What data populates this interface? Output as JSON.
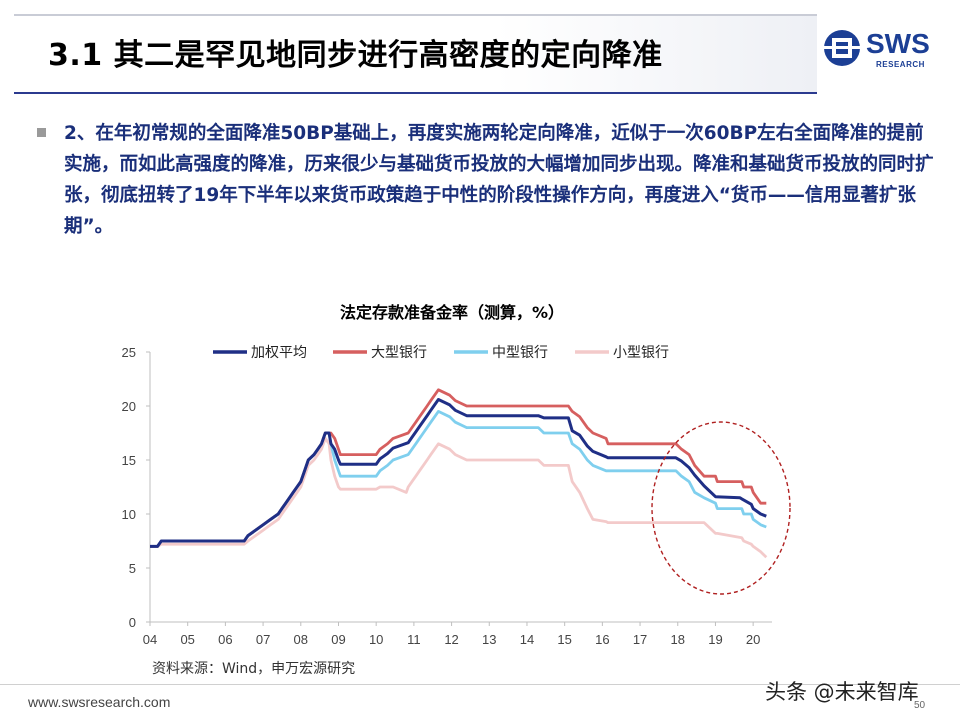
{
  "slide": {
    "title": "3.1 其二是罕见地同步进行高密度的定向降准",
    "logo_text": "SWS",
    "logo_sub": "RESEARCH",
    "paragraph": "2、在年初常规的全面降准50BP基础上，再度实施两轮定向降准，近似于一次60BP左右全面降准的提前实施，而如此高强度的降准，历来很少与基础货币投放的大幅增加同步出现。降准和基础货币投放的同时扩张，彻底扭转了19年下半年以来货币政策趋于中性的阶段性操作方向，再度进入“货币——信用显著扩张期”。",
    "source": "资料来源：Wind，申万宏源研究",
    "footer_url": "www.swsresearch.com",
    "watermark": "头条 @未来智库",
    "page_number": "50"
  },
  "colors": {
    "weighted": "#1f2f86",
    "large": "#d65f5f",
    "medium": "#7fcfee",
    "small": "#f3caca",
    "ellipse": "#b02020"
  },
  "chart_data": {
    "type": "line",
    "title": "法定存款准备金率（测算，%）",
    "xlabel": "",
    "ylabel": "",
    "ylim": [
      0,
      25
    ],
    "yticks": [
      0,
      5,
      10,
      15,
      20,
      25
    ],
    "xlim": [
      2004,
      2020.5
    ],
    "xticks": [
      2004,
      2005,
      2006,
      2007,
      2008,
      2009,
      2010,
      2011,
      2012,
      2013,
      2014,
      2015,
      2016,
      2017,
      2018,
      2019,
      2020
    ],
    "xtick_labels": [
      "04",
      "05",
      "06",
      "07",
      "08",
      "09",
      "10",
      "11",
      "12",
      "13",
      "14",
      "15",
      "16",
      "17",
      "18",
      "19",
      "20"
    ],
    "grid": false,
    "legend": "top",
    "series": [
      {
        "name": "加权平均",
        "key": "weighted",
        "points": [
          [
            2004.0,
            7
          ],
          [
            2004.2,
            7
          ],
          [
            2004.3,
            7.5
          ],
          [
            2006.5,
            7.5
          ],
          [
            2006.6,
            8
          ],
          [
            2006.8,
            8.5
          ],
          [
            2007.0,
            9
          ],
          [
            2007.2,
            9.5
          ],
          [
            2007.4,
            10
          ],
          [
            2007.5,
            10.5
          ],
          [
            2007.6,
            11
          ],
          [
            2007.7,
            11.5
          ],
          [
            2007.8,
            12
          ],
          [
            2007.9,
            12.5
          ],
          [
            2008.0,
            13
          ],
          [
            2008.1,
            14
          ],
          [
            2008.2,
            15
          ],
          [
            2008.35,
            15.5
          ],
          [
            2008.45,
            16
          ],
          [
            2008.55,
            16.5
          ],
          [
            2008.65,
            17.5
          ],
          [
            2008.75,
            17.5
          ],
          [
            2008.8,
            16.5
          ],
          [
            2008.9,
            16
          ],
          [
            2009.0,
            15
          ],
          [
            2009.05,
            14.6
          ],
          [
            2010.0,
            14.6
          ],
          [
            2010.1,
            15.1
          ],
          [
            2010.3,
            15.6
          ],
          [
            2010.45,
            16.1
          ],
          [
            2010.85,
            16.6
          ],
          [
            2010.95,
            17.1
          ],
          [
            2011.05,
            17.6
          ],
          [
            2011.15,
            18.1
          ],
          [
            2011.25,
            18.6
          ],
          [
            2011.35,
            19.1
          ],
          [
            2011.45,
            19.6
          ],
          [
            2011.55,
            20.1
          ],
          [
            2011.65,
            20.6
          ],
          [
            2011.95,
            20.1
          ],
          [
            2012.1,
            19.6
          ],
          [
            2012.4,
            19.1
          ],
          [
            2014.3,
            19.1
          ],
          [
            2014.45,
            18.9
          ],
          [
            2015.1,
            18.9
          ],
          [
            2015.2,
            17.7
          ],
          [
            2015.4,
            17.3
          ],
          [
            2015.6,
            16.3
          ],
          [
            2015.75,
            15.8
          ],
          [
            2016.1,
            15.3
          ],
          [
            2016.15,
            15.2
          ],
          [
            2017.95,
            15.2
          ],
          [
            2018.1,
            14.9
          ],
          [
            2018.3,
            14.3
          ],
          [
            2018.45,
            13.6
          ],
          [
            2018.7,
            12.6
          ],
          [
            2019.0,
            11.6
          ],
          [
            2019.65,
            11.5
          ],
          [
            2019.7,
            11.4
          ],
          [
            2019.95,
            10.9
          ],
          [
            2020.0,
            10.5
          ],
          [
            2020.2,
            10.0
          ],
          [
            2020.35,
            9.8
          ]
        ]
      },
      {
        "name": "大型银行",
        "key": "large",
        "points": [
          [
            2004.0,
            7
          ],
          [
            2004.2,
            7
          ],
          [
            2004.3,
            7.5
          ],
          [
            2006.5,
            7.5
          ],
          [
            2006.6,
            8
          ],
          [
            2006.8,
            8.5
          ],
          [
            2007.0,
            9
          ],
          [
            2007.2,
            9.5
          ],
          [
            2007.4,
            10
          ],
          [
            2007.5,
            10.5
          ],
          [
            2007.6,
            11
          ],
          [
            2007.7,
            11.5
          ],
          [
            2007.8,
            12
          ],
          [
            2007.9,
            12.5
          ],
          [
            2008.0,
            13
          ],
          [
            2008.1,
            14
          ],
          [
            2008.2,
            15
          ],
          [
            2008.35,
            15.5
          ],
          [
            2008.45,
            16
          ],
          [
            2008.55,
            16.5
          ],
          [
            2008.65,
            17.5
          ],
          [
            2008.75,
            17.5
          ],
          [
            2008.8,
            17.5
          ],
          [
            2008.9,
            17
          ],
          [
            2009.0,
            16
          ],
          [
            2009.05,
            15.5
          ],
          [
            2010.0,
            15.5
          ],
          [
            2010.1,
            16
          ],
          [
            2010.3,
            16.5
          ],
          [
            2010.45,
            17
          ],
          [
            2010.85,
            17.5
          ],
          [
            2010.95,
            18
          ],
          [
            2011.05,
            18.5
          ],
          [
            2011.15,
            19
          ],
          [
            2011.25,
            19.5
          ],
          [
            2011.35,
            20
          ],
          [
            2011.45,
            20.5
          ],
          [
            2011.55,
            21
          ],
          [
            2011.65,
            21.5
          ],
          [
            2011.95,
            21
          ],
          [
            2012.1,
            20.5
          ],
          [
            2012.4,
            20
          ],
          [
            2015.1,
            20
          ],
          [
            2015.2,
            19.5
          ],
          [
            2015.4,
            19
          ],
          [
            2015.6,
            18
          ],
          [
            2015.75,
            17.5
          ],
          [
            2016.1,
            17
          ],
          [
            2016.15,
            16.5
          ],
          [
            2017.95,
            16.5
          ],
          [
            2018.1,
            16
          ],
          [
            2018.3,
            15.5
          ],
          [
            2018.45,
            14.5
          ],
          [
            2018.7,
            13.5
          ],
          [
            2019.0,
            13.5
          ],
          [
            2019.05,
            13
          ],
          [
            2019.7,
            13
          ],
          [
            2019.75,
            12.5
          ],
          [
            2019.95,
            12.5
          ],
          [
            2020.0,
            12
          ],
          [
            2020.2,
            11
          ],
          [
            2020.35,
            11
          ]
        ]
      },
      {
        "name": "中型银行",
        "key": "medium",
        "points": [
          [
            2004.0,
            7
          ],
          [
            2004.2,
            7
          ],
          [
            2004.3,
            7.5
          ],
          [
            2006.5,
            7.5
          ],
          [
            2006.6,
            8
          ],
          [
            2006.8,
            8.5
          ],
          [
            2007.0,
            9
          ],
          [
            2007.2,
            9.5
          ],
          [
            2007.4,
            10
          ],
          [
            2007.5,
            10.5
          ],
          [
            2007.6,
            11
          ],
          [
            2007.7,
            11.5
          ],
          [
            2007.8,
            12
          ],
          [
            2007.9,
            12.5
          ],
          [
            2008.0,
            13
          ],
          [
            2008.1,
            14
          ],
          [
            2008.2,
            15
          ],
          [
            2008.35,
            15.5
          ],
          [
            2008.45,
            16
          ],
          [
            2008.55,
            16.5
          ],
          [
            2008.65,
            17.5
          ],
          [
            2008.75,
            17.5
          ],
          [
            2008.8,
            16.5
          ],
          [
            2008.9,
            15
          ],
          [
            2009.0,
            14
          ],
          [
            2009.05,
            13.5
          ],
          [
            2010.0,
            13.5
          ],
          [
            2010.1,
            14
          ],
          [
            2010.3,
            14.5
          ],
          [
            2010.45,
            15
          ],
          [
            2010.85,
            15.5
          ],
          [
            2010.95,
            16
          ],
          [
            2011.05,
            16.5
          ],
          [
            2011.15,
            17
          ],
          [
            2011.25,
            17.5
          ],
          [
            2011.35,
            18
          ],
          [
            2011.45,
            18.5
          ],
          [
            2011.55,
            19
          ],
          [
            2011.65,
            19.5
          ],
          [
            2011.95,
            19
          ],
          [
            2012.1,
            18.5
          ],
          [
            2012.4,
            18
          ],
          [
            2014.3,
            18
          ],
          [
            2014.45,
            17.5
          ],
          [
            2015.1,
            17.5
          ],
          [
            2015.2,
            16.5
          ],
          [
            2015.4,
            16
          ],
          [
            2015.6,
            15
          ],
          [
            2015.75,
            14.5
          ],
          [
            2016.1,
            14
          ],
          [
            2016.15,
            14
          ],
          [
            2017.95,
            14
          ],
          [
            2018.1,
            13.5
          ],
          [
            2018.3,
            13
          ],
          [
            2018.45,
            12
          ],
          [
            2018.7,
            11.5
          ],
          [
            2019.0,
            11
          ],
          [
            2019.05,
            10.5
          ],
          [
            2019.7,
            10.5
          ],
          [
            2019.75,
            10
          ],
          [
            2019.95,
            10
          ],
          [
            2020.0,
            9.5
          ],
          [
            2020.2,
            9.0
          ],
          [
            2020.35,
            8.8
          ]
        ]
      },
      {
        "name": "小型银行",
        "key": "small",
        "points": [
          [
            2004.0,
            7
          ],
          [
            2004.2,
            7
          ],
          [
            2004.3,
            7.2
          ],
          [
            2006.5,
            7.2
          ],
          [
            2006.6,
            7.5
          ],
          [
            2006.8,
            8
          ],
          [
            2007.0,
            8.5
          ],
          [
            2007.2,
            9
          ],
          [
            2007.4,
            9.5
          ],
          [
            2007.5,
            10
          ],
          [
            2007.6,
            10.5
          ],
          [
            2007.7,
            11
          ],
          [
            2007.8,
            11.5
          ],
          [
            2007.9,
            12
          ],
          [
            2008.0,
            12.5
          ],
          [
            2008.1,
            13.5
          ],
          [
            2008.2,
            14.5
          ],
          [
            2008.35,
            15
          ],
          [
            2008.45,
            15.5
          ],
          [
            2008.55,
            16
          ],
          [
            2008.65,
            17
          ],
          [
            2008.75,
            16.5
          ],
          [
            2008.8,
            15
          ],
          [
            2008.9,
            13.5
          ],
          [
            2009.0,
            12.5
          ],
          [
            2009.05,
            12.3
          ],
          [
            2010.0,
            12.3
          ],
          [
            2010.1,
            12.5
          ],
          [
            2010.3,
            12.5
          ],
          [
            2010.45,
            12.5
          ],
          [
            2010.8,
            12.0
          ],
          [
            2010.85,
            12.5
          ],
          [
            2010.95,
            13
          ],
          [
            2011.05,
            13.5
          ],
          [
            2011.15,
            14
          ],
          [
            2011.25,
            14.5
          ],
          [
            2011.35,
            15
          ],
          [
            2011.45,
            15.5
          ],
          [
            2011.55,
            16
          ],
          [
            2011.65,
            16.5
          ],
          [
            2011.95,
            16
          ],
          [
            2012.1,
            15.5
          ],
          [
            2012.4,
            15
          ],
          [
            2014.3,
            15
          ],
          [
            2014.45,
            14.5
          ],
          [
            2015.1,
            14.5
          ],
          [
            2015.2,
            13
          ],
          [
            2015.4,
            12
          ],
          [
            2015.6,
            10.5
          ],
          [
            2015.75,
            9.5
          ],
          [
            2016.1,
            9.3
          ],
          [
            2016.15,
            9.2
          ],
          [
            2017.95,
            9.2
          ],
          [
            2018.1,
            9.2
          ],
          [
            2018.3,
            9.2
          ],
          [
            2018.45,
            9.2
          ],
          [
            2018.7,
            9.2
          ],
          [
            2019.0,
            8.2
          ],
          [
            2019.05,
            8.2
          ],
          [
            2019.7,
            7.8
          ],
          [
            2019.75,
            7.5
          ],
          [
            2019.95,
            7.2
          ],
          [
            2020.0,
            7.0
          ],
          [
            2020.2,
            6.5
          ],
          [
            2020.35,
            6.0
          ]
        ]
      }
    ]
  }
}
